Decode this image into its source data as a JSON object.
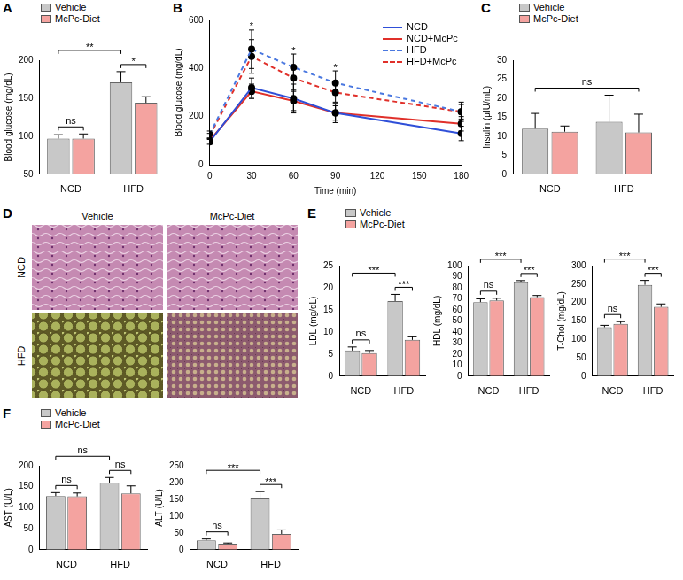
{
  "chart_data": [
    {
      "panel": "A",
      "type": "bar",
      "y_label": "Blood glucose (mg/dL)",
      "categories": [
        "NCD",
        "HFD"
      ],
      "series": [
        {
          "name": "Vehicle",
          "color": "#c8c8c8",
          "values": [
            97,
            171
          ],
          "errors": [
            5,
            14
          ]
        },
        {
          "name": "McPc-Diet",
          "color": "#f4a3a0",
          "values": [
            97,
            144
          ],
          "errors": [
            6,
            8
          ]
        }
      ],
      "ylim": [
        50,
        200
      ],
      "yticks": [
        50,
        100,
        150,
        200
      ],
      "grid": false,
      "legend": "top-left",
      "annotations": [
        {
          "text": "ns",
          "between": [
            [
              "NCD",
              "Vehicle"
            ],
            [
              "NCD",
              "McPc-Diet"
            ]
          ]
        },
        {
          "text": "*",
          "between": [
            [
              "HFD",
              "Vehicle"
            ],
            [
              "HFD",
              "McPc-Diet"
            ]
          ]
        },
        {
          "text": "**",
          "between": [
            [
              "NCD",
              "Vehicle"
            ],
            [
              "HFD",
              "Vehicle"
            ]
          ]
        }
      ]
    },
    {
      "panel": "B",
      "type": "line",
      "x_label": "Time (min)",
      "y_label": "Blood glucose (mg/dL)",
      "x": [
        0,
        30,
        60,
        90,
        180
      ],
      "series": [
        {
          "name": "NCD",
          "color": "#2f4fd8",
          "line_style": "solid",
          "marker": "circle",
          "values": [
            95,
            320,
            275,
            215,
            130
          ],
          "errors": [
            10,
            40,
            60,
            40,
            30
          ]
        },
        {
          "name": "NCD+McPc",
          "color": "#e0302a",
          "line_style": "solid",
          "marker": "circle",
          "values": [
            100,
            305,
            265,
            215,
            170
          ],
          "errors": [
            10,
            30,
            40,
            30,
            30
          ]
        },
        {
          "name": "HFD",
          "color": "#4a78e0",
          "line_style": "dashed",
          "marker": "circle",
          "values": [
            125,
            480,
            405,
            340,
            220
          ],
          "errors": [
            15,
            80,
            55,
            50,
            30
          ]
        },
        {
          "name": "HFD+McPc",
          "color": "#e0302a",
          "line_style": "dashed",
          "marker": "circle",
          "values": [
            120,
            450,
            360,
            300,
            220
          ],
          "errors": [
            10,
            70,
            50,
            40,
            40
          ]
        }
      ],
      "xlim": [
        0,
        180
      ],
      "xticks": [
        0,
        30,
        60,
        90,
        120,
        150,
        180
      ],
      "ylim": [
        0,
        600
      ],
      "yticks": [
        0,
        200,
        400,
        600
      ],
      "grid": false,
      "legend": "top-right",
      "annotations": [
        {
          "text": "*",
          "x": 30
        },
        {
          "text": "*",
          "x": 60
        },
        {
          "text": "*",
          "x": 90
        }
      ]
    },
    {
      "panel": "C",
      "type": "bar",
      "y_label": "Insulin (μIU/mL)",
      "categories": [
        "NCD",
        "HFD"
      ],
      "series": [
        {
          "name": "Vehicle",
          "color": "#c8c8c8",
          "values": [
            12,
            13.8
          ],
          "errors": [
            4,
            7
          ]
        },
        {
          "name": "McPc-Diet",
          "color": "#f4a3a0",
          "values": [
            11.2,
            11
          ],
          "errors": [
            1.5,
            4.8
          ]
        }
      ],
      "ylim": [
        0,
        30
      ],
      "yticks": [
        0,
        5,
        10,
        15,
        20,
        25,
        30
      ],
      "grid": false,
      "legend": "top-left",
      "annotations": [
        {
          "text": "ns",
          "between": [
            [
              "NCD",
              "Vehicle"
            ],
            [
              "HFD",
              "McPc-Diet"
            ]
          ]
        }
      ]
    },
    {
      "panel": "E",
      "type": "bar",
      "y_label": "LDL (mg/dL)",
      "categories": [
        "NCD",
        "HFD"
      ],
      "series": [
        {
          "name": "Vehicle",
          "color": "#c8c8c8",
          "values": [
            5.8,
            17
          ],
          "errors": [
            0.8,
            1.5
          ]
        },
        {
          "name": "McPc-Diet",
          "color": "#f4a3a0",
          "values": [
            5.2,
            8.2
          ],
          "errors": [
            0.6,
            0.7
          ]
        }
      ],
      "ylim": [
        0,
        25
      ],
      "yticks": [
        0,
        5,
        10,
        15,
        20,
        25
      ],
      "grid": false,
      "legend": "top-left",
      "annotations": [
        {
          "text": "ns",
          "between": [
            [
              "NCD",
              "Vehicle"
            ],
            [
              "NCD",
              "McPc-Diet"
            ]
          ]
        },
        {
          "text": "***",
          "between": [
            [
              "HFD",
              "Vehicle"
            ],
            [
              "HFD",
              "McPc-Diet"
            ]
          ]
        },
        {
          "text": "***",
          "between": [
            [
              "NCD",
              "Vehicle"
            ],
            [
              "HFD",
              "Vehicle"
            ]
          ]
        }
      ]
    },
    {
      "type": "bar",
      "y_label": "HDL (mg/dL)",
      "categories": [
        "NCD",
        "HFD"
      ],
      "series": [
        {
          "name": "Vehicle",
          "color": "#c8c8c8",
          "values": [
            67,
            85
          ],
          "errors": [
            3,
            1.5
          ]
        },
        {
          "name": "McPc-Diet",
          "color": "#f4a3a0",
          "values": [
            68.5,
            71.5
          ],
          "errors": [
            2,
            1.5
          ]
        }
      ],
      "ylim": [
        0,
        100
      ],
      "yticks": [
        0,
        10,
        20,
        30,
        40,
        50,
        60,
        70,
        80,
        90,
        100
      ],
      "grid": false,
      "annotations": [
        {
          "text": "ns",
          "between": [
            [
              "NCD",
              "Vehicle"
            ],
            [
              "NCD",
              "McPc-Diet"
            ]
          ]
        },
        {
          "text": "***",
          "between": [
            [
              "HFD",
              "Vehicle"
            ],
            [
              "HFD",
              "McPc-Diet"
            ]
          ]
        },
        {
          "text": "***",
          "between": [
            [
              "NCD",
              "Vehicle"
            ],
            [
              "HFD",
              "Vehicle"
            ]
          ]
        }
      ]
    },
    {
      "type": "bar",
      "y_label": "T-Chol (mg/dL)",
      "categories": [
        "NCD",
        "HFD"
      ],
      "series": [
        {
          "name": "Vehicle",
          "color": "#c8c8c8",
          "values": [
            133,
            248
          ],
          "errors": [
            5,
            12
          ]
        },
        {
          "name": "McPc-Diet",
          "color": "#f4a3a0",
          "values": [
            142,
            188
          ],
          "errors": [
            6,
            8
          ]
        }
      ],
      "ylim": [
        0,
        300
      ],
      "yticks": [
        0,
        50,
        100,
        150,
        200,
        250,
        300
      ],
      "grid": false,
      "annotations": [
        {
          "text": "ns",
          "between": [
            [
              "NCD",
              "Vehicle"
            ],
            [
              "NCD",
              "McPc-Diet"
            ]
          ]
        },
        {
          "text": "***",
          "between": [
            [
              "HFD",
              "Vehicle"
            ],
            [
              "HFD",
              "McPc-Diet"
            ]
          ]
        },
        {
          "text": "***",
          "between": [
            [
              "NCD",
              "Vehicle"
            ],
            [
              "HFD",
              "Vehicle"
            ]
          ]
        }
      ]
    },
    {
      "panel": "F",
      "type": "bar",
      "y_label": "AST (U/L)",
      "categories": [
        "NCD",
        "HFD"
      ],
      "series": [
        {
          "name": "Vehicle",
          "color": "#c8c8c8",
          "values": [
            128,
            160
          ],
          "errors": [
            8,
            12
          ]
        },
        {
          "name": "McPc-Diet",
          "color": "#f4a3a0",
          "values": [
            127,
            134
          ],
          "errors": [
            8,
            18
          ]
        }
      ],
      "ylim": [
        0,
        200
      ],
      "yticks": [
        0,
        50,
        100,
        150,
        200
      ],
      "grid": false,
      "legend": "top-left",
      "annotations": [
        {
          "text": "ns",
          "between": [
            [
              "NCD",
              "Vehicle"
            ],
            [
              "NCD",
              "McPc-Diet"
            ]
          ]
        },
        {
          "text": "ns",
          "between": [
            [
              "HFD",
              "Vehicle"
            ],
            [
              "HFD",
              "McPc-Diet"
            ]
          ]
        },
        {
          "text": "ns",
          "between": [
            [
              "NCD",
              "Vehicle"
            ],
            [
              "HFD",
              "Vehicle"
            ]
          ]
        }
      ]
    },
    {
      "type": "bar",
      "y_label": "ALT (U/L)",
      "categories": [
        "NCD",
        "HFD"
      ],
      "series": [
        {
          "name": "Vehicle",
          "color": "#c8c8c8",
          "values": [
            28,
            155
          ],
          "errors": [
            4,
            18
          ]
        },
        {
          "name": "McPc-Diet",
          "color": "#f4a3a0",
          "values": [
            18,
            47
          ],
          "errors": [
            2,
            12
          ]
        }
      ],
      "ylim": [
        0,
        250
      ],
      "yticks": [
        0,
        50,
        100,
        150,
        200,
        250
      ],
      "grid": false,
      "annotations": [
        {
          "text": "ns",
          "between": [
            [
              "NCD",
              "Vehicle"
            ],
            [
              "NCD",
              "McPc-Diet"
            ]
          ]
        },
        {
          "text": "***",
          "between": [
            [
              "HFD",
              "Vehicle"
            ],
            [
              "HFD",
              "McPc-Diet"
            ]
          ]
        },
        {
          "text": "***",
          "between": [
            [
              "NCD",
              "Vehicle"
            ],
            [
              "HFD",
              "Vehicle"
            ]
          ]
        }
      ]
    }
  ],
  "histology": {
    "panel": "D",
    "columns": [
      "Vehicle",
      "McPc-Diet"
    ],
    "rows": [
      "NCD",
      "HFD"
    ]
  }
}
